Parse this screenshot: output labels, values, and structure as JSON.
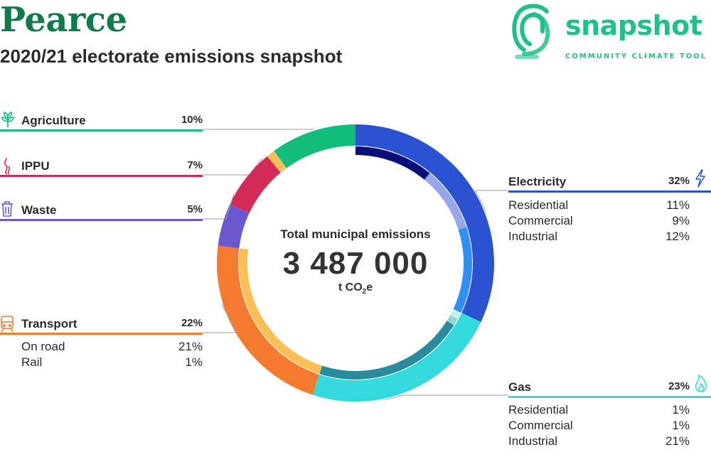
{
  "header": {
    "title": "Pearce",
    "subtitle": "2020/21 electorate emissions snapshot"
  },
  "logo": {
    "wordmark": "snapshot",
    "tagline": "COMMUNITY CLIMATE TOOL",
    "color": "#1fc08a"
  },
  "center": {
    "label": "Total municipal emissions",
    "value": "3 487 000",
    "unit_prefix": "t CO",
    "unit_sub": "2",
    "unit_suffix": "e"
  },
  "chart_data": {
    "type": "pie",
    "title": "",
    "total": 3487000,
    "categories": [
      {
        "name": "Electricity",
        "percent": 32,
        "color": "#2a52d1",
        "icon": "lightning-icon",
        "subs": [
          {
            "name": "Residential",
            "percent": 11,
            "color": "#0a0f7a"
          },
          {
            "name": "Commercial",
            "percent": 9,
            "color": "#95a7ea"
          },
          {
            "name": "Industrial",
            "percent": 12,
            "color": "#2f8ff5"
          }
        ]
      },
      {
        "name": "Gas",
        "percent": 23,
        "color": "#33d9dc",
        "icon": "flame-icon",
        "subs": [
          {
            "name": "Residential",
            "percent": 1,
            "color": "#c4f2ee"
          },
          {
            "name": "Commercial",
            "percent": 1,
            "color": "#8ed6d2"
          },
          {
            "name": "Industrial",
            "percent": 21,
            "color": "#2a8b9c"
          }
        ]
      },
      {
        "name": "Transport",
        "percent": 22,
        "color": "#f47a2f",
        "icon": "train-icon",
        "subs": [
          {
            "name": "On road",
            "percent": 21,
            "color": "#fbbf55"
          },
          {
            "name": "Rail",
            "percent": 1,
            "color": "#fbbf55"
          }
        ]
      },
      {
        "name": "Waste",
        "percent": 5,
        "color": "#6d57cf",
        "icon": "trash-icon",
        "subs": []
      },
      {
        "name": "IPPU",
        "percent": 7,
        "color": "#d42a56",
        "icon": "smoke-icon",
        "subs": []
      },
      {
        "name": "Agriculture",
        "percent": 10,
        "color": "#13be7c",
        "icon": "leaf-icon",
        "subs": []
      }
    ],
    "small_unlabeled_segment": {
      "percent": 1,
      "color": "#fbbf55"
    }
  }
}
